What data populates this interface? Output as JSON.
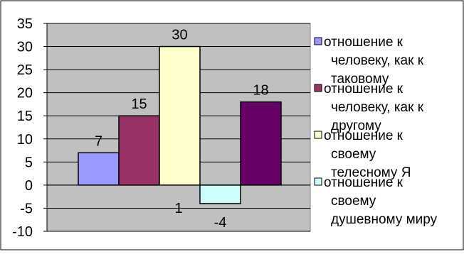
{
  "chart_data": {
    "type": "bar",
    "title": "",
    "xlabel": "",
    "ylabel": "",
    "ylim": [
      -10,
      35
    ],
    "y_ticks": [
      35,
      30,
      25,
      20,
      15,
      10,
      5,
      0,
      -5,
      -10
    ],
    "grid": true,
    "legend_position": "right",
    "plot_background": "#c0c0c0",
    "categories": [
      "1"
    ],
    "series": [
      {
        "name": "отношение к человеку, как к таковому",
        "values": [
          7
        ],
        "color": "#9999ff"
      },
      {
        "name": "отношение к человеку, как к другому",
        "values": [
          15
        ],
        "color": "#993366"
      },
      {
        "name": "отношение к своему телесному Я",
        "values": [
          30
        ],
        "color": "#ffffcc"
      },
      {
        "name": "отношение к своему душевному миру",
        "values": [
          -4
        ],
        "color": "#ccffff"
      },
      {
        "name": "",
        "values": [
          18
        ],
        "color": "#660066"
      }
    ],
    "legend": [
      {
        "lines": [
          "отношение к",
          "человеку, как к",
          "таковому"
        ]
      },
      {
        "lines": [
          "отношение к",
          "человеку, как к",
          "другому"
        ]
      },
      {
        "lines": [
          "отношение к",
          "своему",
          "телесному Я"
        ]
      },
      {
        "lines": [
          "отношение к",
          "своему",
          "душевному миру"
        ]
      }
    ]
  }
}
